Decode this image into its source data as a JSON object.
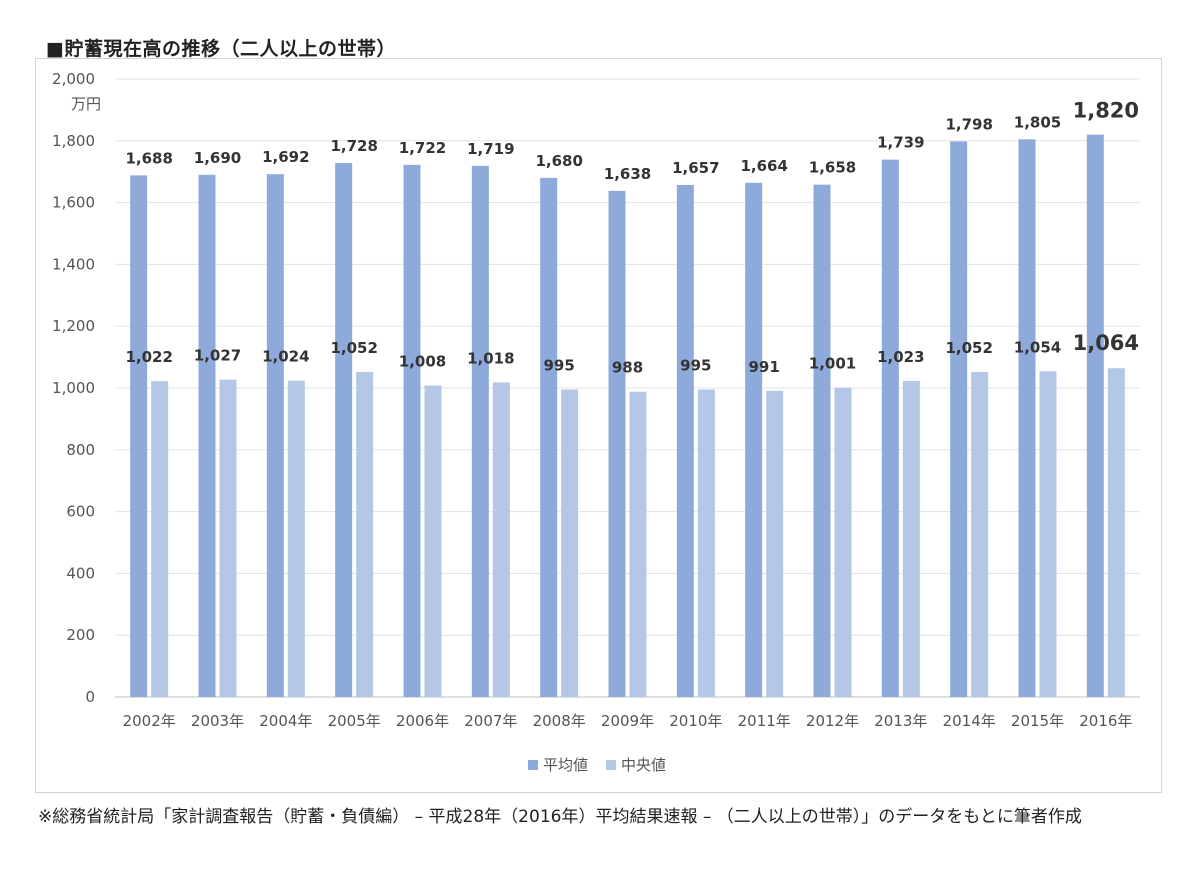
{
  "title": "■貯蓄現在高の推移（二人以上の世帯）",
  "footnote": "※総務省統計局「家計調査報告（貯蓄・負債編） – 平成28年（2016年）平均結果速報 – （二人以上の世帯）」のデータをもとに筆者作成",
  "chart_data": {
    "type": "bar",
    "unit_label": "万円",
    "categories": [
      "2002年",
      "2003年",
      "2004年",
      "2005年",
      "2006年",
      "2007年",
      "2008年",
      "2009年",
      "2010年",
      "2011年",
      "2012年",
      "2013年",
      "2014年",
      "2015年",
      "2016年"
    ],
    "series": [
      {
        "name": "平均値",
        "color": "#8eaadb",
        "values": [
          1688,
          1690,
          1692,
          1728,
          1722,
          1719,
          1680,
          1638,
          1657,
          1664,
          1658,
          1739,
          1798,
          1805,
          1820
        ],
        "labels": [
          "1,688",
          "1,690",
          "1,692",
          "1,728",
          "1,722",
          "1,719",
          "1,680",
          "1,638",
          "1,657",
          "1,664",
          "1,658",
          "1,739",
          "1,798",
          "1,805",
          "1,820"
        ]
      },
      {
        "name": "中央値",
        "color": "#b4c7e7",
        "values": [
          1022,
          1027,
          1024,
          1052,
          1008,
          1018,
          995,
          988,
          995,
          991,
          1001,
          1023,
          1052,
          1054,
          1064
        ],
        "labels": [
          "1,022",
          "1,027",
          "1,024",
          "1,052",
          "1,008",
          "1,018",
          "995",
          "988",
          "995",
          "991",
          "1,001",
          "1,023",
          "1,052",
          "1,054",
          "1,064"
        ]
      }
    ],
    "ylim": [
      0,
      2000
    ],
    "yticks": [
      0,
      200,
      400,
      600,
      800,
      1000,
      1200,
      1400,
      1600,
      1800,
      2000
    ],
    "ytick_labels": [
      "0",
      "200",
      "400",
      "600",
      "800",
      "1,000",
      "1,200",
      "1,400",
      "1,600",
      "1,800",
      "2,000"
    ],
    "grid": true,
    "legend": "bottom"
  }
}
